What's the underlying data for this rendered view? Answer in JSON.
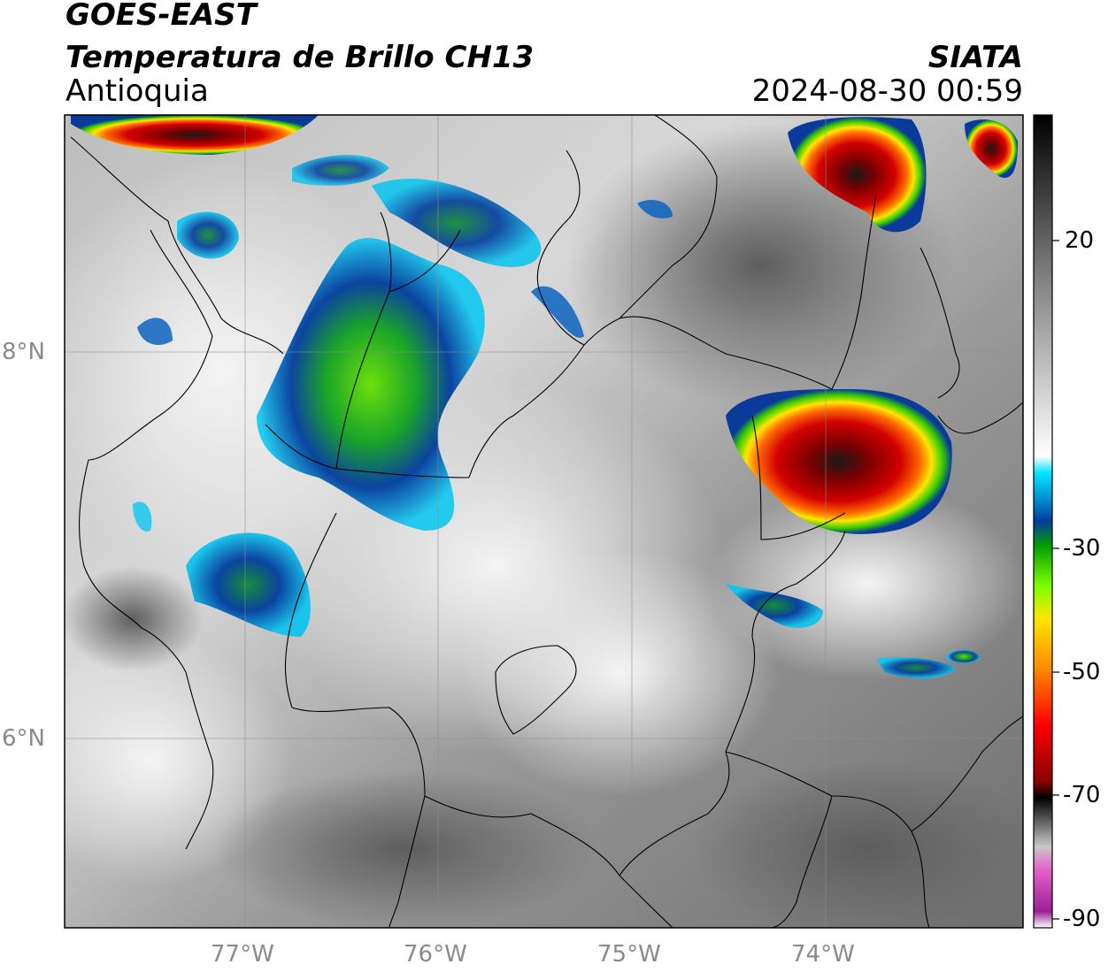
{
  "header": {
    "satellite": "GOES-EAST",
    "product": "Temperatura de Brillo CH13",
    "region": "Antioquia",
    "agency": "SIATA",
    "datetime": "2024-08-30 00:59"
  },
  "map": {
    "lat_ticks": [
      "8°N",
      "6°N"
    ],
    "lon_ticks": [
      "77°W",
      "76°W",
      "75°W",
      "74°W"
    ],
    "grid": true
  },
  "colorbar": {
    "labels": [
      "20",
      "-30",
      "-50",
      "-70",
      "-90"
    ],
    "palette": [
      "#ffffff",
      "#9b1f96",
      "#e45ec7",
      "#c8c8c8",
      "#000000",
      "#8b0000",
      "#ff0000",
      "#ff8c00",
      "#ffe600",
      "#7fff00",
      "#00a000",
      "#003c9c",
      "#0096d8",
      "#00e5ff",
      "#ffffff",
      "#808080",
      "#000000"
    ]
  }
}
